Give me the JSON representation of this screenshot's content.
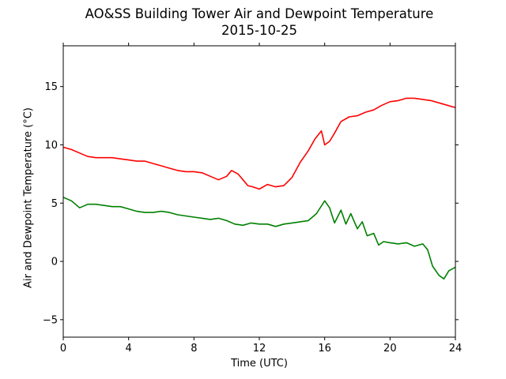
{
  "chart_data": {
    "type": "line",
    "title": "AO&SS Building Tower Air and Dewpoint Temperature",
    "subtitle": "2015-10-25",
    "xlabel": "Time (UTC)",
    "ylabel": "Air and Dewpoint Temperature (°C)",
    "xlim": [
      0,
      24
    ],
    "ylim": [
      -6.5,
      18.5
    ],
    "xticks": [
      0,
      4,
      8,
      12,
      16,
      20,
      24
    ],
    "yticks": [
      -5,
      0,
      5,
      10,
      15
    ],
    "grid": false,
    "legend": "none",
    "series": [
      {
        "color": "#ff0000",
        "x": [
          0,
          0.5,
          1,
          1.5,
          2,
          2.5,
          3,
          3.5,
          4,
          4.5,
          5,
          5.5,
          6,
          6.5,
          7,
          7.5,
          8,
          8.5,
          9,
          9.5,
          10,
          10.3,
          10.7,
          11,
          11.3,
          11.6,
          12,
          12.5,
          13,
          13.5,
          14,
          14.5,
          15,
          15.4,
          15.8,
          16,
          16.3,
          16.6,
          17,
          17.5,
          18,
          18.5,
          19,
          19.5,
          20,
          20.5,
          21,
          21.5,
          22,
          22.5,
          23,
          23.5,
          24
        ],
        "y": [
          9.8,
          9.6,
          9.3,
          9.0,
          8.9,
          8.9,
          8.9,
          8.8,
          8.7,
          8.6,
          8.6,
          8.4,
          8.2,
          8.0,
          7.8,
          7.7,
          7.7,
          7.6,
          7.3,
          7.0,
          7.3,
          7.8,
          7.5,
          7.0,
          6.5,
          6.4,
          6.2,
          6.6,
          6.4,
          6.5,
          7.2,
          8.5,
          9.5,
          10.5,
          11.2,
          10.0,
          10.3,
          11.0,
          12.0,
          12.4,
          12.5,
          12.8,
          13.0,
          13.4,
          13.7,
          13.8,
          14.0,
          14.0,
          13.9,
          13.8,
          13.6,
          13.4,
          13.2
        ]
      },
      {
        "color": "#008000",
        "x": [
          0,
          0.5,
          1,
          1.5,
          2,
          2.5,
          3,
          3.5,
          4,
          4.5,
          5,
          5.5,
          6,
          6.5,
          7,
          7.5,
          8,
          8.5,
          9,
          9.5,
          10,
          10.5,
          11,
          11.5,
          12,
          12.5,
          13,
          13.5,
          14,
          14.5,
          15,
          15.5,
          16,
          16.3,
          16.6,
          17,
          17.3,
          17.6,
          18,
          18.3,
          18.6,
          19,
          19.3,
          19.6,
          20,
          20.5,
          21,
          21.5,
          22,
          22.3,
          22.6,
          23,
          23.3,
          23.6,
          24
        ],
        "y": [
          5.5,
          5.2,
          4.6,
          4.9,
          4.9,
          4.8,
          4.7,
          4.7,
          4.5,
          4.3,
          4.2,
          4.2,
          4.3,
          4.2,
          4.0,
          3.9,
          3.8,
          3.7,
          3.6,
          3.7,
          3.5,
          3.2,
          3.1,
          3.3,
          3.2,
          3.2,
          3.0,
          3.2,
          3.3,
          3.4,
          3.5,
          4.1,
          5.2,
          4.6,
          3.3,
          4.4,
          3.2,
          4.1,
          2.8,
          3.4,
          2.2,
          2.4,
          1.4,
          1.7,
          1.6,
          1.5,
          1.6,
          1.3,
          1.5,
          1.0,
          -0.4,
          -1.2,
          -1.5,
          -0.8,
          -0.5
        ]
      }
    ]
  }
}
